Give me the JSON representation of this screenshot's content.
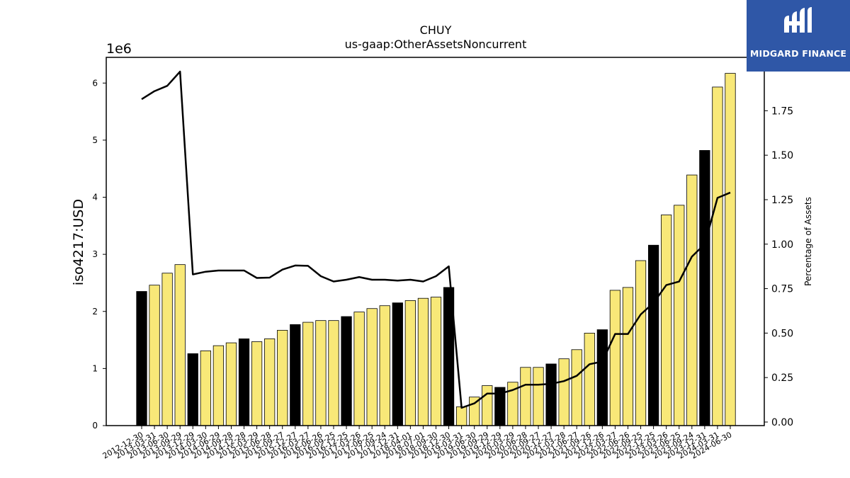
{
  "logo": {
    "name": "MIDGARD FINANCE",
    "background": "#2f57a7"
  },
  "chart_data": {
    "type": "bar",
    "title": "CHUY",
    "subtitle": "us-gaap:OtherAssetsNoncurrent",
    "ylabel": "iso4217:USD",
    "y_scale_label": "1e6",
    "y2label": "Percentage of Assets",
    "ylim": [
      0,
      6450000
    ],
    "y2lim": [
      -0.02,
      2.05
    ],
    "yticks": [
      "0",
      "1",
      "2",
      "3",
      "4",
      "5",
      "6"
    ],
    "y2ticks": [
      "0.00",
      "0.25",
      "0.50",
      "0.75",
      "1.00",
      "1.25",
      "1.50",
      "1.75"
    ],
    "grid": false,
    "colors": {
      "annual": "#000000",
      "quarterly": "#f8e878",
      "line": "#000000"
    },
    "categories": [
      "2012-12-30",
      "2013-03-31",
      "2013-06-30",
      "2013-09-29",
      "2013-12-29",
      "2014-03-30",
      "2014-06-29",
      "2014-09-28",
      "2014-12-28",
      "2015-03-29",
      "2015-06-28",
      "2015-09-27",
      "2015-12-27",
      "2016-03-27",
      "2016-06-26",
      "2016-09-25",
      "2016-12-25",
      "2017-03-26",
      "2017-06-25",
      "2017-09-24",
      "2017-12-31",
      "2018-04-01",
      "2018-07-01",
      "2018-09-30",
      "2018-12-30",
      "2019-03-31",
      "2019-06-30",
      "2019-09-29",
      "2019-12-29",
      "2020-03-29",
      "2020-06-28",
      "2020-09-27",
      "2020-12-27",
      "2021-03-28",
      "2021-06-27",
      "2021-09-26",
      "2021-12-26",
      "2022-03-27",
      "2022-06-26",
      "2022-09-25",
      "2022-12-25",
      "2023-03-26",
      "2023-06-25",
      "2023-09-24",
      "2023-12-31",
      "2024-03-31",
      "2024-06-30"
    ],
    "series": [
      {
        "type": "bar",
        "values": [
          2350000,
          2460000,
          2670000,
          2820000,
          1260000,
          1310000,
          1400000,
          1450000,
          1520000,
          1470000,
          1520000,
          1670000,
          1770000,
          1810000,
          1840000,
          1840000,
          1910000,
          1990000,
          2050000,
          2100000,
          2150000,
          2190000,
          2230000,
          2250000,
          2420000,
          330000,
          500000,
          700000,
          670000,
          760000,
          1020000,
          1020000,
          1080000,
          1170000,
          1330000,
          1620000,
          1680000,
          2370000,
          2420000,
          2890000,
          3160000,
          3690000,
          3860000,
          4390000,
          4820000,
          5930000,
          6170000
        ],
        "annual": [
          true,
          false,
          false,
          false,
          true,
          false,
          false,
          false,
          true,
          false,
          false,
          false,
          true,
          false,
          false,
          false,
          true,
          false,
          false,
          false,
          true,
          false,
          false,
          false,
          true,
          false,
          false,
          false,
          true,
          false,
          false,
          false,
          true,
          false,
          false,
          false,
          true,
          false,
          false,
          false,
          true,
          false,
          false,
          false,
          true,
          false,
          false
        ]
      },
      {
        "type": "line",
        "name": "Percentage of Assets",
        "axis": "right",
        "values": [
          1.815,
          1.86,
          1.89,
          1.97,
          0.83,
          0.845,
          0.852,
          0.852,
          0.852,
          0.81,
          0.812,
          0.857,
          0.88,
          0.878,
          0.82,
          0.79,
          0.8,
          0.815,
          0.8,
          0.8,
          0.795,
          0.8,
          0.79,
          0.82,
          0.875,
          0.08,
          0.105,
          0.16,
          0.16,
          0.18,
          0.21,
          0.21,
          0.215,
          0.23,
          0.26,
          0.325,
          0.34,
          0.495,
          0.495,
          0.605,
          0.67,
          0.77,
          0.79,
          0.93,
          1.0,
          1.26,
          1.29
        ]
      }
    ]
  }
}
